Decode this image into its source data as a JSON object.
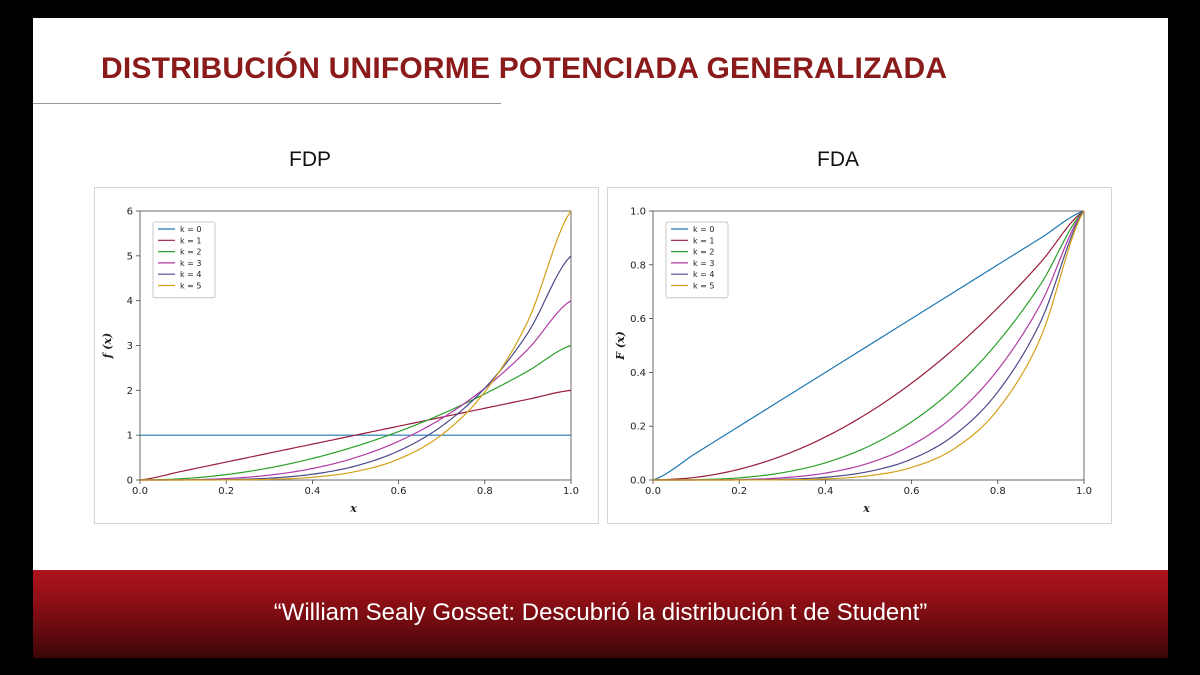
{
  "slide": {
    "title": "DISTRIBUCIÓN UNIFORME POTENCIADA GENERALIZADA",
    "footer_quote": "“William Sealy Gosset: Descubrió la distribución t de Student”"
  },
  "colors": {
    "title": "#8b1a1a",
    "footer": "#8d0f15",
    "series": [
      "#1f77b4",
      "#9b1d3a",
      "#2ca02c",
      "#b23aa6",
      "#4b4b8c",
      "#d4a017"
    ]
  },
  "chart_data": [
    {
      "id": "pdf",
      "panel_title": "FDP",
      "type": "line",
      "xlabel": "x",
      "ylabel": "f (x)",
      "xlim": [
        0.0,
        1.0
      ],
      "ylim": [
        0,
        6
      ],
      "xticks": [
        "0.0",
        "0.2",
        "0.4",
        "0.6",
        "0.8",
        "1.0"
      ],
      "yticks": [
        "0",
        "1",
        "2",
        "3",
        "4",
        "5",
        "6"
      ],
      "grid": false,
      "legend_position": "top-left",
      "x": [
        0.0,
        0.1,
        0.2,
        0.3,
        0.4,
        0.5,
        0.6,
        0.7,
        0.8,
        0.9,
        1.0
      ],
      "series": [
        {
          "name": "k = 0",
          "values": [
            1,
            1,
            1,
            1,
            1,
            1,
            1,
            1,
            1,
            1,
            1
          ]
        },
        {
          "name": "k = 1",
          "values": [
            0,
            0.2,
            0.4,
            0.6,
            0.8,
            1.0,
            1.2,
            1.4,
            1.6,
            1.8,
            2.0
          ]
        },
        {
          "name": "k = 2",
          "values": [
            0,
            0.03,
            0.12,
            0.27,
            0.48,
            0.75,
            1.08,
            1.47,
            1.92,
            2.43,
            3.0
          ]
        },
        {
          "name": "k = 3",
          "values": [
            0,
            0.004,
            0.032,
            0.108,
            0.256,
            0.5,
            0.864,
            1.372,
            2.048,
            2.916,
            4.0
          ]
        },
        {
          "name": "k = 4",
          "values": [
            0,
            0.0005,
            0.008,
            0.0405,
            0.128,
            0.3125,
            0.648,
            1.2005,
            2.048,
            3.2805,
            5.0
          ]
        },
        {
          "name": "k = 5",
          "values": [
            0,
            0.0001,
            0.0019,
            0.0146,
            0.0614,
            0.1875,
            0.4666,
            1.0084,
            1.9661,
            3.5429,
            6.0
          ]
        }
      ]
    },
    {
      "id": "cdf",
      "panel_title": "FDA",
      "type": "line",
      "xlabel": "x",
      "ylabel": "F (x)",
      "xlim": [
        0.0,
        1.0
      ],
      "ylim": [
        0.0,
        1.0
      ],
      "xticks": [
        "0.0",
        "0.2",
        "0.4",
        "0.6",
        "0.8",
        "1.0"
      ],
      "yticks": [
        "0.0",
        "0.2",
        "0.4",
        "0.6",
        "0.8",
        "1.0"
      ],
      "grid": false,
      "legend_position": "top-left",
      "x": [
        0.0,
        0.1,
        0.2,
        0.3,
        0.4,
        0.5,
        0.6,
        0.7,
        0.8,
        0.9,
        1.0
      ],
      "series": [
        {
          "name": "k = 0",
          "values": [
            0,
            0.1,
            0.2,
            0.3,
            0.4,
            0.5,
            0.6,
            0.7,
            0.8,
            0.9,
            1.0
          ]
        },
        {
          "name": "k = 1",
          "values": [
            0,
            0.01,
            0.04,
            0.09,
            0.16,
            0.25,
            0.36,
            0.49,
            0.64,
            0.81,
            1.0
          ]
        },
        {
          "name": "k = 2",
          "values": [
            0,
            0.001,
            0.008,
            0.027,
            0.064,
            0.125,
            0.216,
            0.343,
            0.512,
            0.729,
            1.0
          ]
        },
        {
          "name": "k = 3",
          "values": [
            0,
            0.0001,
            0.0016,
            0.0081,
            0.0256,
            0.0625,
            0.1296,
            0.2401,
            0.4096,
            0.6561,
            1.0
          ]
        },
        {
          "name": "k = 4",
          "values": [
            0,
            0.0,
            0.0003,
            0.0024,
            0.0102,
            0.0313,
            0.0778,
            0.1681,
            0.3277,
            0.5905,
            1.0
          ]
        },
        {
          "name": "k = 5",
          "values": [
            0,
            0.0,
            0.0001,
            0.0007,
            0.0041,
            0.0156,
            0.0467,
            0.1176,
            0.2621,
            0.5314,
            1.0
          ]
        }
      ]
    }
  ]
}
